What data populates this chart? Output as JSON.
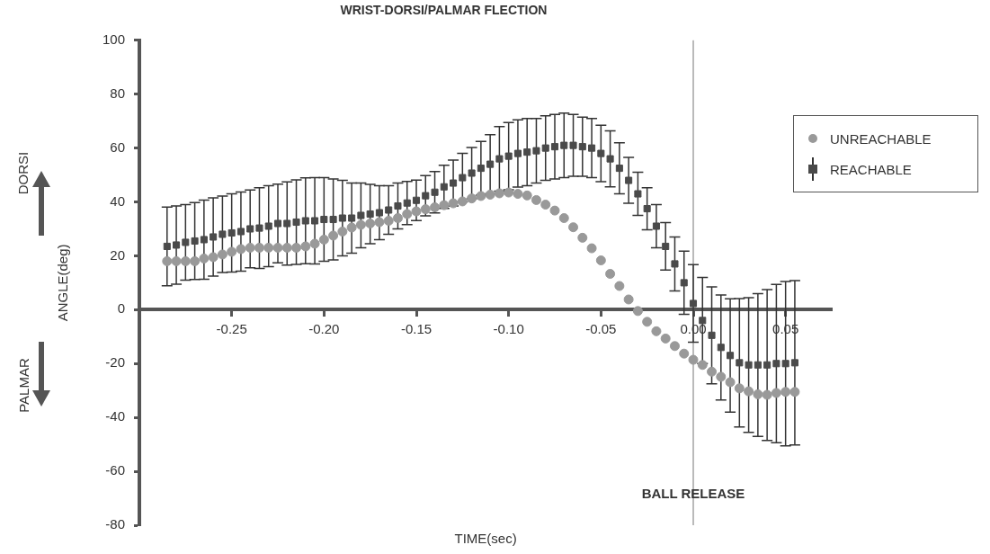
{
  "chart_data": {
    "type": "scatter",
    "title": "WRIST-DORSI/PALMAR FLECTION",
    "xlabel": "TIME(sec)",
    "ylabel": "ANGLE(deg)",
    "annotations": [
      "DORSI",
      "PALMAR"
    ],
    "x": [
      -0.285,
      -0.28,
      -0.275,
      -0.27,
      -0.265,
      -0.26,
      -0.255,
      -0.25,
      -0.245,
      -0.24,
      -0.235,
      -0.23,
      -0.225,
      -0.22,
      -0.215,
      -0.21,
      -0.205,
      -0.2,
      -0.195,
      -0.19,
      -0.185,
      -0.18,
      -0.175,
      -0.17,
      -0.165,
      -0.16,
      -0.155,
      -0.15,
      -0.145,
      -0.14,
      -0.135,
      -0.13,
      -0.125,
      -0.12,
      -0.115,
      -0.11,
      -0.105,
      -0.1,
      -0.095,
      -0.09,
      -0.085,
      -0.08,
      -0.075,
      -0.07,
      -0.065,
      -0.06,
      -0.055,
      -0.05,
      -0.045,
      -0.04,
      -0.035,
      -0.03,
      -0.025,
      -0.02,
      -0.015,
      -0.01,
      -0.005,
      0,
      0.005,
      0.01,
      0.015,
      0.02,
      0.025,
      0.03,
      0.035,
      0.04,
      0.045,
      0.05,
      0.055
    ],
    "series": [
      {
        "name": "UNREACHABLE",
        "color": "#999999",
        "marker": "circle",
        "values": [
          18,
          18,
          18,
          18,
          19,
          19.5,
          20.5,
          21.5,
          22.5,
          23,
          23,
          23,
          23,
          23,
          23,
          23.5,
          24.5,
          26,
          27.5,
          29,
          30.5,
          31.5,
          32,
          32.5,
          33,
          34,
          35.5,
          36.5,
          37.3,
          38,
          38.8,
          39.5,
          40.2,
          41.3,
          42.2,
          42.7,
          43.2,
          43.5,
          43,
          42.4,
          40.7,
          39,
          36.8,
          34,
          30.6,
          26.7,
          22.8,
          18.3,
          13.3,
          8.8,
          3.8,
          -0.5,
          -4.5,
          -8,
          -10.7,
          -13.5,
          -16.3,
          -18.6,
          -20.5,
          -23,
          -24.9,
          -26.9,
          -29.2,
          -30.3,
          -31.4,
          -31.6,
          -30.9,
          -30.5,
          -30.5
        ]
      },
      {
        "name": "REACHABLE",
        "color": "#4a4a4a",
        "marker": "square",
        "values": [
          23.5,
          24,
          25,
          25.5,
          26,
          27,
          28,
          28.5,
          29,
          30,
          30.3,
          31,
          32,
          32,
          32.5,
          33,
          33,
          33.5,
          33.5,
          34,
          34,
          35,
          35.5,
          36,
          37,
          38.5,
          39.6,
          40.6,
          42.3,
          43.6,
          45.6,
          47,
          49,
          50.7,
          52.5,
          54,
          56,
          57,
          58,
          58.5,
          59,
          60,
          60.5,
          61,
          61,
          60.5,
          60,
          58,
          56,
          52.5,
          48,
          43,
          37.5,
          31,
          23.5,
          17,
          10,
          2.3,
          -4,
          -9.5,
          -14,
          -17,
          -19.7,
          -20.5,
          -20.5,
          -20.5,
          -20,
          -20,
          -19.7
        ],
        "errors": [
          14.6,
          14.5,
          14,
          14.3,
          14.7,
          14.5,
          14.2,
          14.5,
          14.7,
          14.4,
          15,
          15,
          14.6,
          15.4,
          15.7,
          15.9,
          16,
          15.5,
          15,
          14,
          13,
          12,
          11,
          10,
          9,
          8.5,
          8,
          7.5,
          7.5,
          7.7,
          8,
          8.5,
          9,
          9.5,
          10,
          11,
          12,
          12.5,
          12.5,
          12.5,
          12,
          12,
          12,
          12,
          11.5,
          11,
          11,
          10.5,
          10.4,
          9.5,
          8.5,
          8,
          7.8,
          8,
          8.8,
          10,
          11.7,
          14.4,
          16,
          18,
          19.5,
          21,
          23.8,
          25,
          26.5,
          28,
          29.4,
          30.5,
          30.5
        ]
      }
    ],
    "xlim": [
      -0.3,
      0.075
    ],
    "xticks": [
      -0.25,
      {
        "value": -0.2,
        "label": "-0.20"
      },
      -0.15,
      {
        "value": -0.1,
        "label": "-0.10"
      },
      -0.05,
      {
        "value": 0,
        "label": "0.00"
      },
      0.05
    ],
    "ylim": [
      -80,
      100
    ],
    "yticks": [
      -80,
      -60,
      -40,
      -20,
      0,
      20,
      40,
      60,
      80,
      100
    ],
    "ref_lines": [
      {
        "axis": "x",
        "value": 0,
        "label": "BALL RELEASE",
        "color": "#777777"
      }
    ],
    "legend": "top right",
    "grid": false
  }
}
